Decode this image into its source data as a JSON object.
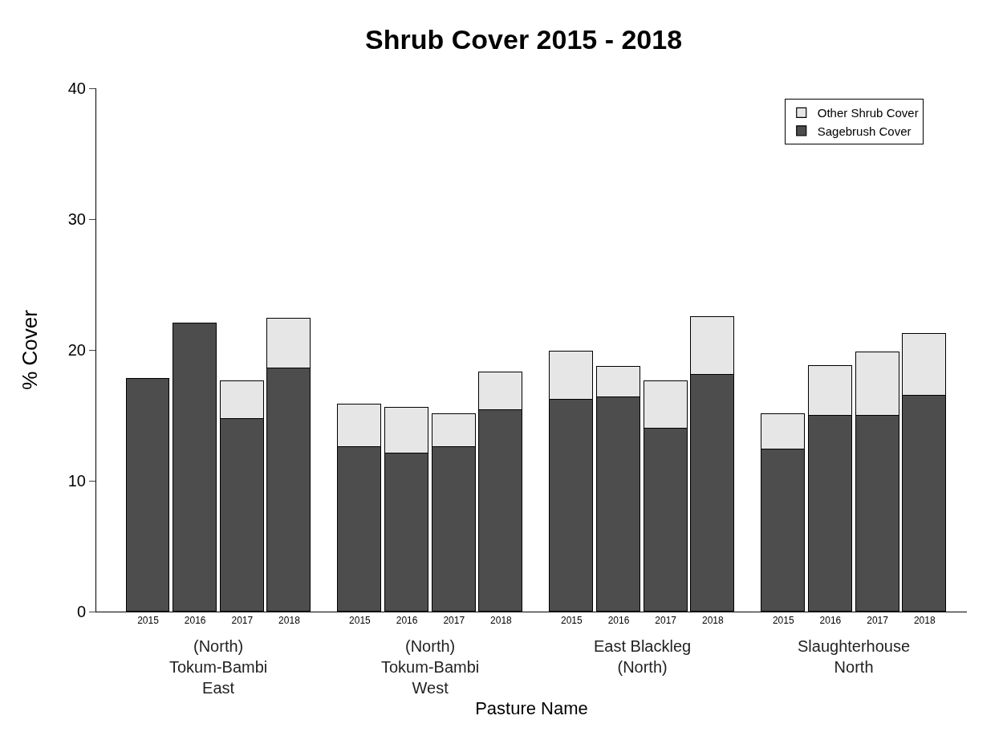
{
  "chart_data": {
    "type": "bar",
    "title": "Shrub Cover 2015 - 2018",
    "xlabel": "Pasture Name",
    "ylabel": "% Cover",
    "categories": [
      "2015",
      "2016",
      "2017",
      "2018",
      "2015",
      "2016",
      "2017",
      "2018",
      "2015",
      "2016",
      "2017",
      "2018",
      "2015",
      "2016",
      "2017",
      "2018"
    ],
    "series": [
      {
        "name": "Sagebrush Cover",
        "color": "#4d4d4d",
        "values": [
          17.8,
          22.0,
          14.7,
          18.6,
          12.6,
          12.1,
          12.6,
          15.4,
          16.2,
          16.4,
          14.0,
          18.1,
          12.4,
          15.0,
          15.0,
          16.5
        ]
      },
      {
        "name": "Other Shrub Cover",
        "color": "#e6e6e6",
        "values": [
          null,
          null,
          2.9,
          3.8,
          3.2,
          3.5,
          2.5,
          2.9,
          3.7,
          2.3,
          3.6,
          4.4,
          2.7,
          3.8,
          4.8,
          4.7
        ]
      }
    ],
    "annotations": [
      "(North)\nTokum-Bambi\nEast",
      "(North)\nTokum-Bambi\nWest",
      "East Blackleg\n(North)",
      "Slaughterhouse\nNorth"
    ],
    "stacked": true,
    "ylim": [
      0,
      40
    ],
    "yticks": [
      0,
      10,
      20,
      30,
      40
    ],
    "grid": false,
    "legend": "top right"
  }
}
